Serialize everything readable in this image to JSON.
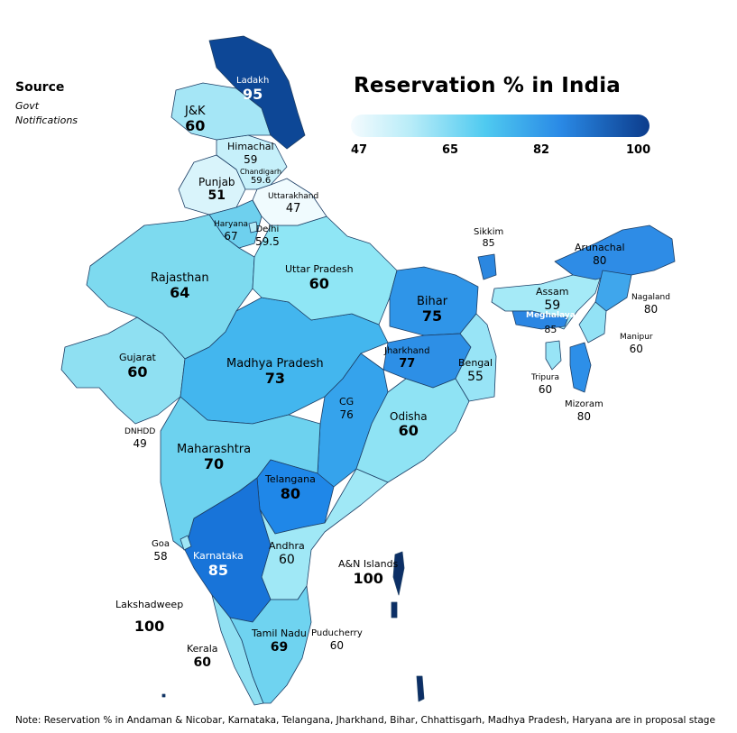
{
  "title": "Reservation % in India",
  "source": {
    "heading": "Source",
    "line1": "Govt",
    "line2": "Notifications"
  },
  "legend": {
    "ticks": [
      "47",
      "65",
      "82",
      "100"
    ],
    "colors": [
      "#f4fbfe",
      "#b8ecf8",
      "#4fcaf0",
      "#2a8ae6",
      "#0c3c8c"
    ]
  },
  "regions": {
    "ladakh": {
      "name": "Ladakh",
      "value": "95"
    },
    "jk": {
      "name": "J&K",
      "value": "60"
    },
    "himachal": {
      "name": "Himachal",
      "value": "59"
    },
    "chandigarh": {
      "name": "Chandigarh",
      "value": "59.6"
    },
    "punjab": {
      "name": "Punjab",
      "value": "51"
    },
    "uttarakhand": {
      "name": "Uttarakhand",
      "value": "47"
    },
    "haryana": {
      "name": "Haryana",
      "value": "67"
    },
    "delhi": {
      "name": "Delhi",
      "value": "59.5"
    },
    "rajasthan": {
      "name": "Rajasthan",
      "value": "64"
    },
    "up": {
      "name": "Uttar Pradesh",
      "value": "60"
    },
    "bihar": {
      "name": "Bihar",
      "value": "75"
    },
    "sikkim": {
      "name": "Sikkim",
      "value": "85"
    },
    "arunachal": {
      "name": "Arunachal",
      "value": "80"
    },
    "assam": {
      "name": "Assam",
      "value": "59"
    },
    "meghalaya": {
      "name": "Meghalaya",
      "value": "85"
    },
    "nagaland": {
      "name": "Nagaland",
      "value": "80"
    },
    "manipur": {
      "name": "Manipur",
      "value": "60"
    },
    "tripura": {
      "name": "Tripura",
      "value": "60"
    },
    "mizoram": {
      "name": "Mizoram",
      "value": "80"
    },
    "gujarat": {
      "name": "Gujarat",
      "value": "60"
    },
    "mp": {
      "name": "Madhya Pradesh",
      "value": "73"
    },
    "jharkhand": {
      "name": "Jharkhand",
      "value": "77"
    },
    "bengal": {
      "name": "Bengal",
      "value": "55"
    },
    "cg": {
      "name": "CG",
      "value": "76"
    },
    "odisha": {
      "name": "Odisha",
      "value": "60"
    },
    "dnhdd": {
      "name": "DNHDD",
      "value": "49"
    },
    "maharashtra": {
      "name": "Maharashtra",
      "value": "70"
    },
    "telangana": {
      "name": "Telangana",
      "value": "80"
    },
    "goa": {
      "name": "Goa",
      "value": "58"
    },
    "karnataka": {
      "name": "Karnataka",
      "value": "85"
    },
    "andhra": {
      "name": "Andhra",
      "value": "60"
    },
    "an_islands": {
      "name": "A&N Islands",
      "value": "100"
    },
    "lakshadweep": {
      "name": "Lakshadweep",
      "value": "100"
    },
    "tamilnadu": {
      "name": "Tamil Nadu",
      "value": "69"
    },
    "puducherry": {
      "name": "Puducherry",
      "value": "60"
    },
    "kerala": {
      "name": "Kerala",
      "value": "60"
    }
  },
  "note": "Note: Reservation % in Andaman & Nicobar, Karnataka, Telangana, Jharkhand, Bihar, Chhattisgarh, Madhya Pradesh, Haryana are in proposal stage"
}
